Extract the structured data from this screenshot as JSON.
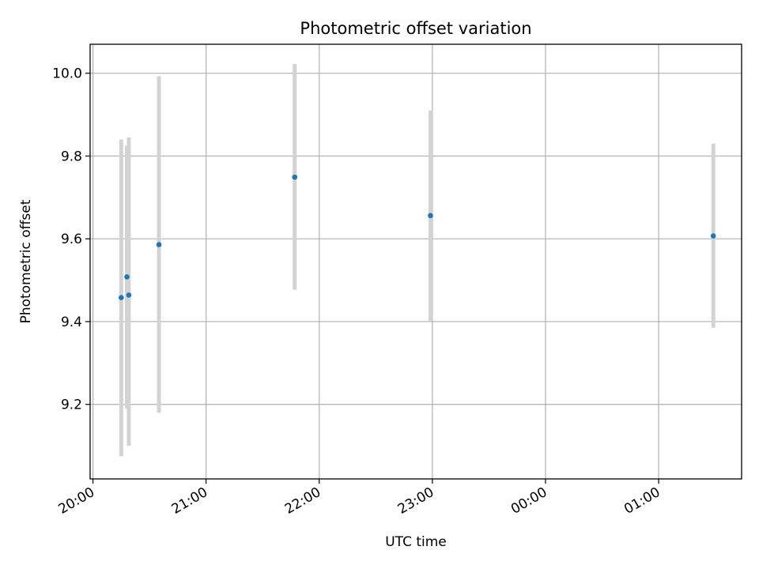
{
  "chart_data": {
    "type": "scatter",
    "title": "Photometric offset variation",
    "xlabel": "UTC time",
    "ylabel": "Photometric offset",
    "x_tick_labels": [
      "20:00",
      "21:00",
      "22:00",
      "23:00",
      "00:00",
      "01:00"
    ],
    "y_tick_labels": [
      "9.2",
      "9.4",
      "9.6",
      "9.8",
      "10.0"
    ],
    "xlim": [
      "20:00",
      "01:44"
    ],
    "ylim": [
      9.02,
      10.07
    ],
    "grid": true,
    "legend": null,
    "series": [
      {
        "points": [
          {
            "x": "20:15",
            "y": 9.458,
            "err_low": 9.075,
            "err_high": 9.84
          },
          {
            "x": "20:18",
            "y": 9.508,
            "err_low": 9.19,
            "err_high": 9.825
          },
          {
            "x": "20:19",
            "y": 9.464,
            "err_low": 9.1,
            "err_high": 9.845
          },
          {
            "x": "20:35",
            "y": 9.586,
            "err_low": 9.18,
            "err_high": 9.993
          },
          {
            "x": "21:47",
            "y": 9.749,
            "err_low": 9.477,
            "err_high": 10.022
          },
          {
            "x": "22:59",
            "y": 9.656,
            "err_low": 9.402,
            "err_high": 9.91
          },
          {
            "x": "01:29",
            "y": 9.607,
            "err_low": 9.385,
            "err_high": 9.83
          }
        ]
      }
    ],
    "colors": {
      "marker": "#1f77b4",
      "errorbar": "#d3d3d3",
      "grid": "#b0b0b0",
      "axes": "#000000"
    }
  }
}
